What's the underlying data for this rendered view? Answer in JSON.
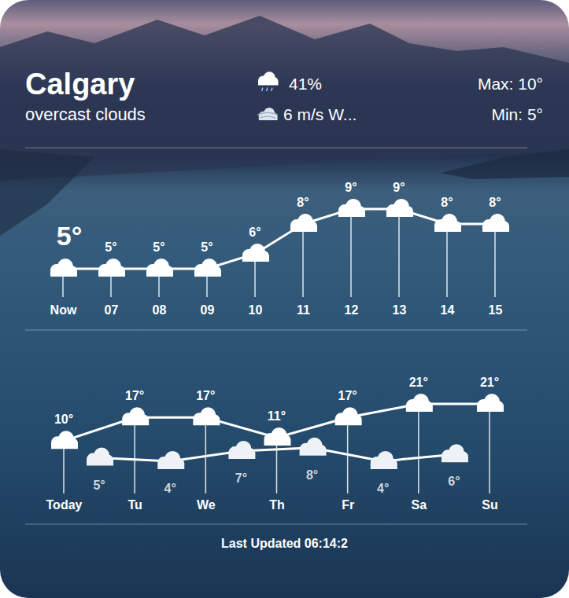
{
  "header": {
    "city": "Calgary",
    "condition": "overcast clouds",
    "precipitation": "41%",
    "wind": "6 m/s W...",
    "max": "Max: 10°",
    "min": "Min: 5°"
  },
  "chart_data": [
    {
      "type": "line",
      "categories": [
        "Now",
        "07",
        "08",
        "09",
        "10",
        "11",
        "12",
        "13",
        "14",
        "15"
      ],
      "series": [
        {
          "color": "#ffffff",
          "marker": "cloud",
          "values": [
            5,
            5,
            5,
            5,
            6,
            8,
            9,
            9,
            8,
            8
          ],
          "value_labels": [
            "5°",
            "5°",
            "5°",
            "5°",
            "6°",
            "8°",
            "9°",
            "9°",
            "8°",
            "8°"
          ]
        }
      ],
      "ylim": [
        4,
        10
      ],
      "data_labels": true,
      "tick_labels": "x"
    },
    {
      "type": "line",
      "categories": [
        "Today",
        "Tu",
        "We",
        "Th",
        "Fr",
        "Sa",
        "Su"
      ],
      "series": [
        {
          "color": "#ffffff",
          "marker": "cloud",
          "values": [
            10,
            17,
            17,
            11,
            17,
            21,
            21
          ],
          "value_labels": [
            "10°",
            "17°",
            "17°",
            "11°",
            "17°",
            "21°",
            "21°"
          ]
        },
        {
          "color": "#ffffff",
          "marker": "cloud",
          "values": [
            5,
            4,
            7,
            8,
            4,
            6,
            null
          ],
          "value_labels": [
            "5°",
            "4°",
            "7°",
            "8°",
            "4°",
            "6°",
            null
          ]
        }
      ],
      "ylim": [
        0,
        25
      ],
      "data_labels": true,
      "tick_labels": "x"
    }
  ],
  "footer": "Last Updated 06:14:2"
}
